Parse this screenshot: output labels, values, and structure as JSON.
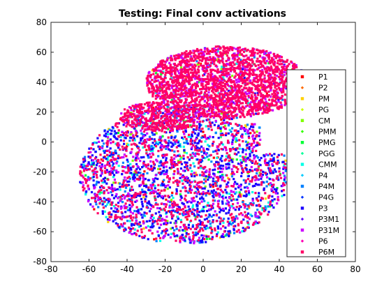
{
  "chart_data": {
    "type": "scatter",
    "title": "Testing: Final conv activations",
    "xlabel": "",
    "ylabel": "",
    "xlim": [
      -80,
      80
    ],
    "ylim": [
      -80,
      80
    ],
    "xticks": [
      -80,
      -60,
      -40,
      -20,
      0,
      20,
      40,
      60,
      80
    ],
    "yticks": [
      -80,
      -60,
      -40,
      -20,
      0,
      20,
      40,
      60,
      80
    ],
    "grid": false,
    "legend_position": "right",
    "series": [
      {
        "name": "P1",
        "color": "#ff0000",
        "marker": "square",
        "region": "lower"
      },
      {
        "name": "P2",
        "color": "#ff6a00",
        "marker": "diamond",
        "region": "lower"
      },
      {
        "name": "PM",
        "color": "#ffd000",
        "marker": "square",
        "region": "lower"
      },
      {
        "name": "PG",
        "color": "#ccff00",
        "marker": "diamond",
        "region": "lower"
      },
      {
        "name": "CM",
        "color": "#80ff00",
        "marker": "square",
        "region": "lower"
      },
      {
        "name": "PMM",
        "color": "#33ff00",
        "marker": "diamond",
        "region": "lower"
      },
      {
        "name": "PMG",
        "color": "#00ff33",
        "marker": "square",
        "region": "lower"
      },
      {
        "name": "PGG",
        "color": "#00ff99",
        "marker": "diamond",
        "region": "lower"
      },
      {
        "name": "CMM",
        "color": "#00ffe6",
        "marker": "square",
        "region": "lower"
      },
      {
        "name": "P4",
        "color": "#00ccff",
        "marker": "diamond",
        "region": "lower"
      },
      {
        "name": "P4M",
        "color": "#0080ff",
        "marker": "square",
        "region": "lower"
      },
      {
        "name": "P4G",
        "color": "#0033ff",
        "marker": "diamond",
        "region": "lower"
      },
      {
        "name": "P3",
        "color": "#1a00ff",
        "marker": "square",
        "region": "lower"
      },
      {
        "name": "P3M1",
        "color": "#6600ff",
        "marker": "diamond",
        "region": "lower"
      },
      {
        "name": "P31M",
        "color": "#cc00ff",
        "marker": "square",
        "region": "mixed"
      },
      {
        "name": "P6",
        "color": "#ff00b3",
        "marker": "diamond",
        "region": "mixed"
      },
      {
        "name": "P6M",
        "color": "#ff0066",
        "marker": "square",
        "region": "upper"
      }
    ]
  }
}
